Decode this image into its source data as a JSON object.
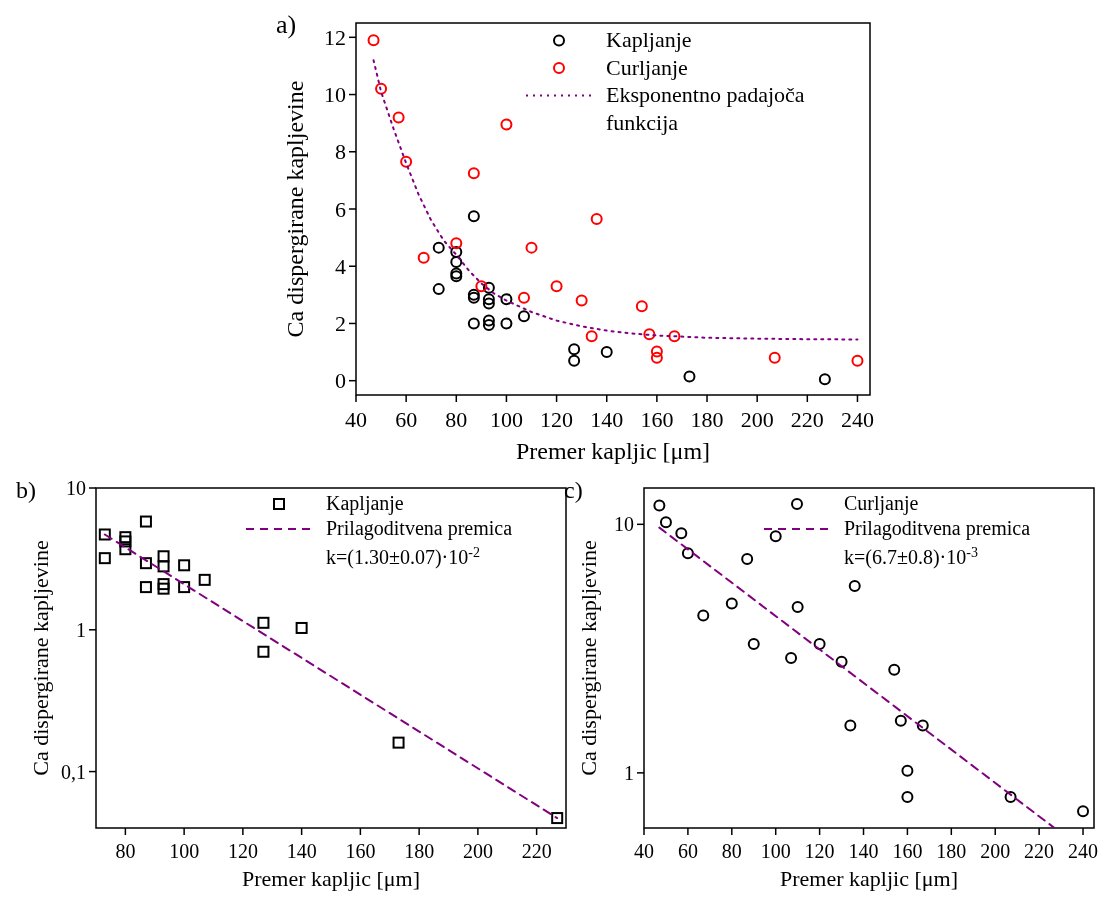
{
  "chart_data": [
    {
      "type": "scatter",
      "title": "a)",
      "xlabel": "Premer kapljic [μm]",
      "ylabel": "Ca dispergirane kapljevine",
      "xlim": [
        40,
        245
      ],
      "xticks": [
        40,
        60,
        80,
        100,
        120,
        140,
        160,
        180,
        200,
        220,
        240
      ],
      "ylim": [
        -0.5,
        12.5
      ],
      "yticks": [
        0,
        2,
        4,
        6,
        8,
        10,
        12
      ],
      "grid": false,
      "legend": "top right",
      "series": [
        {
          "name": "Kapljanje",
          "color": "#000000",
          "marker": "circle",
          "x": [
            73,
            73,
            80,
            80,
            80,
            80,
            87,
            87,
            87,
            87,
            93,
            93,
            93,
            93,
            93,
            100,
            100,
            107,
            127,
            127,
            140,
            173,
            227
          ],
          "values": [
            4.65,
            3.2,
            4.5,
            4.15,
            3.75,
            3.65,
            5.75,
            3.0,
            2.9,
            2.0,
            3.25,
            2.85,
            2.7,
            2.1,
            1.95,
            2.85,
            2.0,
            2.25,
            1.1,
            0.7,
            1.0,
            0.15,
            0.05
          ]
        },
        {
          "name": "Curljanje",
          "color": "#ff0000",
          "marker": "circle",
          "x": [
            47,
            50,
            57,
            60,
            67,
            80,
            87,
            90,
            100,
            107,
            110,
            120,
            130,
            134,
            136,
            154,
            157,
            160,
            160,
            167,
            207,
            240
          ],
          "values": [
            11.9,
            10.2,
            9.2,
            7.65,
            4.3,
            4.8,
            7.25,
            3.3,
            8.95,
            2.9,
            4.65,
            3.3,
            2.8,
            1.55,
            5.65,
            2.6,
            1.62,
            1.02,
            0.8,
            1.55,
            0.8,
            0.7
          ]
        },
        {
          "name": "Eksponentno padajoča funkcija",
          "type": "line",
          "color": "#800080",
          "marker": "none",
          "line_style": "dotted",
          "x": [
            47,
            50,
            55,
            60,
            65,
            70,
            75,
            80,
            85,
            90,
            95,
            100,
            110,
            120,
            130,
            140,
            150,
            160,
            180,
            200,
            220,
            240
          ],
          "values": [
            11.2,
            10.1,
            8.8,
            7.6,
            6.5,
            5.6,
            4.9,
            4.4,
            3.85,
            3.4,
            3.05,
            2.8,
            2.4,
            2.1,
            1.9,
            1.75,
            1.65,
            1.58,
            1.5,
            1.47,
            1.45,
            1.44
          ]
        }
      ]
    },
    {
      "type": "scatter",
      "title": "b)",
      "xlabel": "Premer kapljic [μm]",
      "ylabel": "Ca dispergirane kapljevine",
      "xlim": [
        70,
        230
      ],
      "xticks": [
        80,
        100,
        120,
        140,
        160,
        180,
        200,
        220
      ],
      "ylim": [
        0.04,
        10
      ],
      "yticks": [
        {
          "value": 0.1,
          "label": "0,1"
        },
        1,
        10
      ],
      "log": "y",
      "grid": false,
      "legend": "top right",
      "annotations": [
        "k=(1.30±0.07)·10$^{-2}$"
      ],
      "series": [
        {
          "name": "Kapljanje",
          "color": "#000000",
          "marker": "square",
          "x": [
            73,
            73,
            80,
            80,
            80,
            87,
            87,
            87,
            93,
            93,
            93,
            93,
            100,
            100,
            107,
            127,
            127,
            140,
            173,
            227
          ],
          "values": [
            4.7,
            3.2,
            4.5,
            4.2,
            3.7,
            5.8,
            2.95,
            2.0,
            3.3,
            2.8,
            2.1,
            1.95,
            2.85,
            2.0,
            2.25,
            1.12,
            0.7,
            1.03,
            0.16,
            0.047
          ]
        },
        {
          "name": "Prilagoditvena premica",
          "type": "line",
          "color": "#800080",
          "marker": "none",
          "line_style": "dashed",
          "x": [
            73,
            227
          ],
          "values": [
            4.7,
            0.047
          ]
        }
      ]
    },
    {
      "type": "scatter",
      "title": "c)",
      "xlabel": "Premer kapljic [μm]",
      "ylabel": "Ca dispergirane kapljevine",
      "xlim": [
        40,
        245
      ],
      "xticks": [
        40,
        60,
        80,
        100,
        120,
        140,
        160,
        180,
        200,
        220,
        240
      ],
      "ylim": [
        0.6,
        14
      ],
      "yticks": [
        1,
        10
      ],
      "log": "y",
      "grid": false,
      "legend": "top right",
      "annotations": [
        "k=(6.7±0.8)·10$^{-3}$"
      ],
      "series": [
        {
          "name": "Curljanje",
          "color": "#000000",
          "marker": "circle",
          "x": [
            47,
            50,
            57,
            60,
            67,
            80,
            87,
            90,
            100,
            107,
            110,
            120,
            130,
            134,
            136,
            154,
            157,
            160,
            160,
            167,
            207,
            240
          ],
          "values": [
            11.9,
            10.2,
            9.2,
            7.65,
            4.3,
            4.8,
            7.25,
            3.3,
            8.95,
            2.9,
            4.65,
            3.3,
            2.8,
            1.55,
            5.65,
            2.6,
            1.62,
            1.02,
            0.8,
            1.55,
            0.8,
            0.7
          ]
        },
        {
          "name": "Prilagoditvena premica",
          "type": "line",
          "color": "#800080",
          "marker": "none",
          "line_style": "dashed",
          "x": [
            47,
            227
          ],
          "values": [
            9.7,
            0.6
          ]
        }
      ]
    }
  ]
}
